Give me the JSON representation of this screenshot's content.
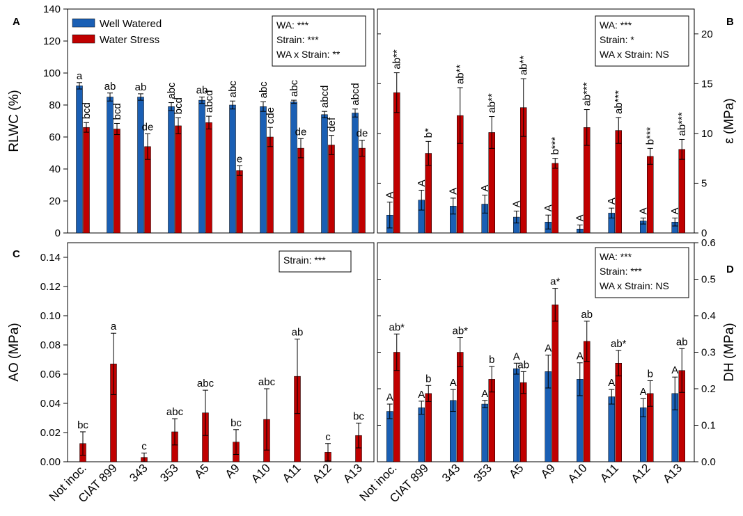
{
  "colors": {
    "well_watered": "#1a5fb4",
    "water_stress": "#c00000",
    "axis": "#000000"
  },
  "legend": {
    "placement": "top-left of panel A",
    "items": [
      {
        "name": "Well Watered",
        "color": "#1a5fb4"
      },
      {
        "name": "Water Stress",
        "color": "#c00000"
      }
    ]
  },
  "categories": [
    "Not inoc.",
    "CIAT 899",
    "343",
    "353",
    "A5",
    "A9",
    "A10",
    "A11",
    "A12",
    "A13"
  ],
  "chart_data": [
    {
      "panel": "A",
      "type": "bar",
      "ylabel": "RLWC (%)",
      "ylim": [
        0,
        140
      ],
      "yticks": [
        0,
        20,
        40,
        60,
        80,
        100,
        120,
        140
      ],
      "axis_side": "left",
      "stats": [
        "WA: ***",
        "Strain: ***",
        "WA x Strain: **"
      ],
      "series": [
        {
          "name": "Well Watered",
          "values": [
            92,
            85,
            85,
            79,
            83,
            80,
            79,
            82,
            74,
            75
          ],
          "errors": [
            2,
            2.5,
            2,
            2.5,
            2,
            2.5,
            3,
            1,
            2,
            2.5
          ],
          "labels": [
            "a",
            "ab",
            "ab",
            "abc",
            "ab",
            "abc",
            "abc",
            "abc",
            "abcd",
            "abcd"
          ]
        },
        {
          "name": "Water Stress",
          "values": [
            66,
            65,
            54,
            67,
            69,
            39,
            60,
            53,
            55,
            53
          ],
          "errors": [
            3,
            3.5,
            8,
            5,
            4,
            3,
            6,
            6,
            6,
            5
          ],
          "labels": [
            "bcd",
            "bcd",
            "de",
            "bcd",
            "abcd",
            "e",
            "cde",
            "de",
            "def",
            "de"
          ]
        }
      ]
    },
    {
      "panel": "B",
      "type": "bar",
      "ylabel": "ε (MPa)",
      "ylim": [
        0,
        22.5
      ],
      "yticks": [
        0,
        5,
        10,
        15,
        20
      ],
      "axis_side": "right",
      "stats": [
        "WA: ***",
        "Strain: *",
        "WA x Strain: NS"
      ],
      "series": [
        {
          "name": "Well Watered",
          "values": [
            1.8,
            3.3,
            2.7,
            2.9,
            1.6,
            1.1,
            0.4,
            2.0,
            1.2,
            1.1
          ],
          "errors": [
            1.3,
            1.0,
            0.8,
            0.9,
            0.6,
            0.7,
            0.4,
            0.5,
            0.3,
            0.4
          ],
          "labels": [
            "A",
            "A",
            "A",
            "A",
            "A",
            "A",
            "A",
            "A",
            "A",
            "A"
          ]
        },
        {
          "name": "Water Stress",
          "values": [
            14.1,
            8.0,
            11.8,
            10.1,
            12.6,
            7.0,
            10.6,
            10.3,
            7.7,
            8.4
          ],
          "errors": [
            2.0,
            1.2,
            2.8,
            1.6,
            2.9,
            0.5,
            1.8,
            1.3,
            0.8,
            1.0
          ],
          "labels": [
            "ab**",
            "b*",
            "ab**",
            "ab**",
            "ab**",
            "b***",
            "ab***",
            "ab***",
            "b***",
            "ab***"
          ]
        }
      ]
    },
    {
      "panel": "C",
      "type": "bar",
      "ylabel": "AO (MPa)",
      "ylim": [
        0,
        0.15
      ],
      "yticks": [
        0.0,
        0.02,
        0.04,
        0.06,
        0.08,
        0.1,
        0.12,
        0.14
      ],
      "axis_side": "left",
      "stats": [
        "Strain: ***"
      ],
      "series": [
        {
          "name": "Water Stress",
          "values": [
            0.0125,
            0.067,
            0.003,
            0.0205,
            0.0335,
            0.0135,
            0.029,
            0.0585,
            0.0065,
            0.018
          ],
          "errors": [
            0.008,
            0.021,
            0.003,
            0.009,
            0.0155,
            0.0085,
            0.021,
            0.0255,
            0.006,
            0.0085
          ],
          "labels": [
            "bc",
            "a",
            "c",
            "abc",
            "abc",
            "bc",
            "abc",
            "ab",
            "c",
            "bc"
          ]
        }
      ]
    },
    {
      "panel": "D",
      "type": "bar",
      "ylabel": "DH (MPa)",
      "ylim": [
        0,
        0.6
      ],
      "yticks": [
        0.0,
        0.1,
        0.2,
        0.3,
        0.4,
        0.5,
        0.6
      ],
      "axis_side": "right",
      "stats": [
        "WA: ***",
        "Strain: ***",
        "WA x Strain: NS"
      ],
      "series": [
        {
          "name": "Well Watered",
          "values": [
            0.138,
            0.148,
            0.168,
            0.158,
            0.255,
            0.247,
            0.226,
            0.178,
            0.148,
            0.187
          ],
          "errors": [
            0.02,
            0.018,
            0.03,
            0.01,
            0.015,
            0.045,
            0.045,
            0.02,
            0.025,
            0.045
          ],
          "labels": [
            "A",
            "A",
            "A",
            "A",
            "A",
            "A",
            "A",
            "A",
            "A",
            "A"
          ]
        },
        {
          "name": "Water Stress",
          "values": [
            0.3,
            0.187,
            0.3,
            0.226,
            0.217,
            0.43,
            0.33,
            0.27,
            0.187,
            0.25
          ],
          "errors": [
            0.05,
            0.022,
            0.04,
            0.035,
            0.03,
            0.045,
            0.055,
            0.035,
            0.035,
            0.06
          ],
          "labels": [
            "ab*",
            "b",
            "ab*",
            "b",
            "ab",
            "a*",
            "ab",
            "ab*",
            "b",
            "ab"
          ]
        }
      ]
    }
  ],
  "panel_letters": [
    "A",
    "B",
    "C",
    "D"
  ]
}
